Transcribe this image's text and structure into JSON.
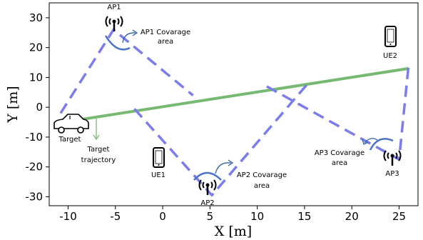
{
  "axes": {
    "xlabel": "X [m]",
    "ylabel": "Y [m]",
    "xlim": [
      -12,
      27
    ],
    "ylim": [
      -33,
      35
    ],
    "xticks": [
      "-10",
      "-5",
      "0",
      "5",
      "10",
      "15",
      "20",
      "25"
    ],
    "yticks": [
      "30",
      "20",
      "10",
      "0",
      "-10",
      "-20",
      "-30"
    ]
  },
  "labels": {
    "ap1": "AP1",
    "ap2": "AP2",
    "ap3": "AP3",
    "ue1": "UE1",
    "ue2": "UE2",
    "target": "Target",
    "ap1_cov_1": "AP1 Covarage",
    "ap1_cov_2": "area",
    "ap2_cov_1": "AP2 Covarage",
    "ap2_cov_2": "area",
    "ap3_cov_1": "AP3 Covarage",
    "ap3_cov_2": "area",
    "traj_1": "Target",
    "traj_2": "trajectory"
  },
  "colors": {
    "trajectory": "#76b971",
    "beam": "#7b7ded",
    "arc": "#4c72c9",
    "callout": "#2f62a8"
  },
  "chart_data": {
    "type": "line",
    "xlim": [
      -12,
      27
    ],
    "ylim": [
      -33,
      35
    ],
    "grid": false,
    "series": [
      {
        "values": [
          [
            -10.5,
            -5
          ],
          [
            26,
            13
          ]
        ]
      }
    ],
    "beams": [
      {
        "values": [
          [
            -10.8,
            -2
          ],
          [
            -5.2,
            26
          ],
          [
            3.2,
            4
          ]
        ]
      },
      {
        "values": [
          [
            -3,
            -0.5
          ],
          [
            5.2,
            -29.5
          ],
          [
            15.5,
            8.5
          ]
        ]
      },
      {
        "values": [
          [
            11,
            7
          ],
          [
            25,
            -17.5
          ],
          [
            26,
            14
          ]
        ]
      }
    ],
    "markers": {
      "ap1": [
        -5,
        31
      ],
      "ap2": [
        5,
        -26
      ],
      "ap3": [
        25,
        -17.5
      ],
      "ue1": [
        -0.2,
        -18
      ],
      "ue2": [
        24.8,
        23
      ],
      "target": [
        -10.5,
        -6
      ]
    }
  }
}
